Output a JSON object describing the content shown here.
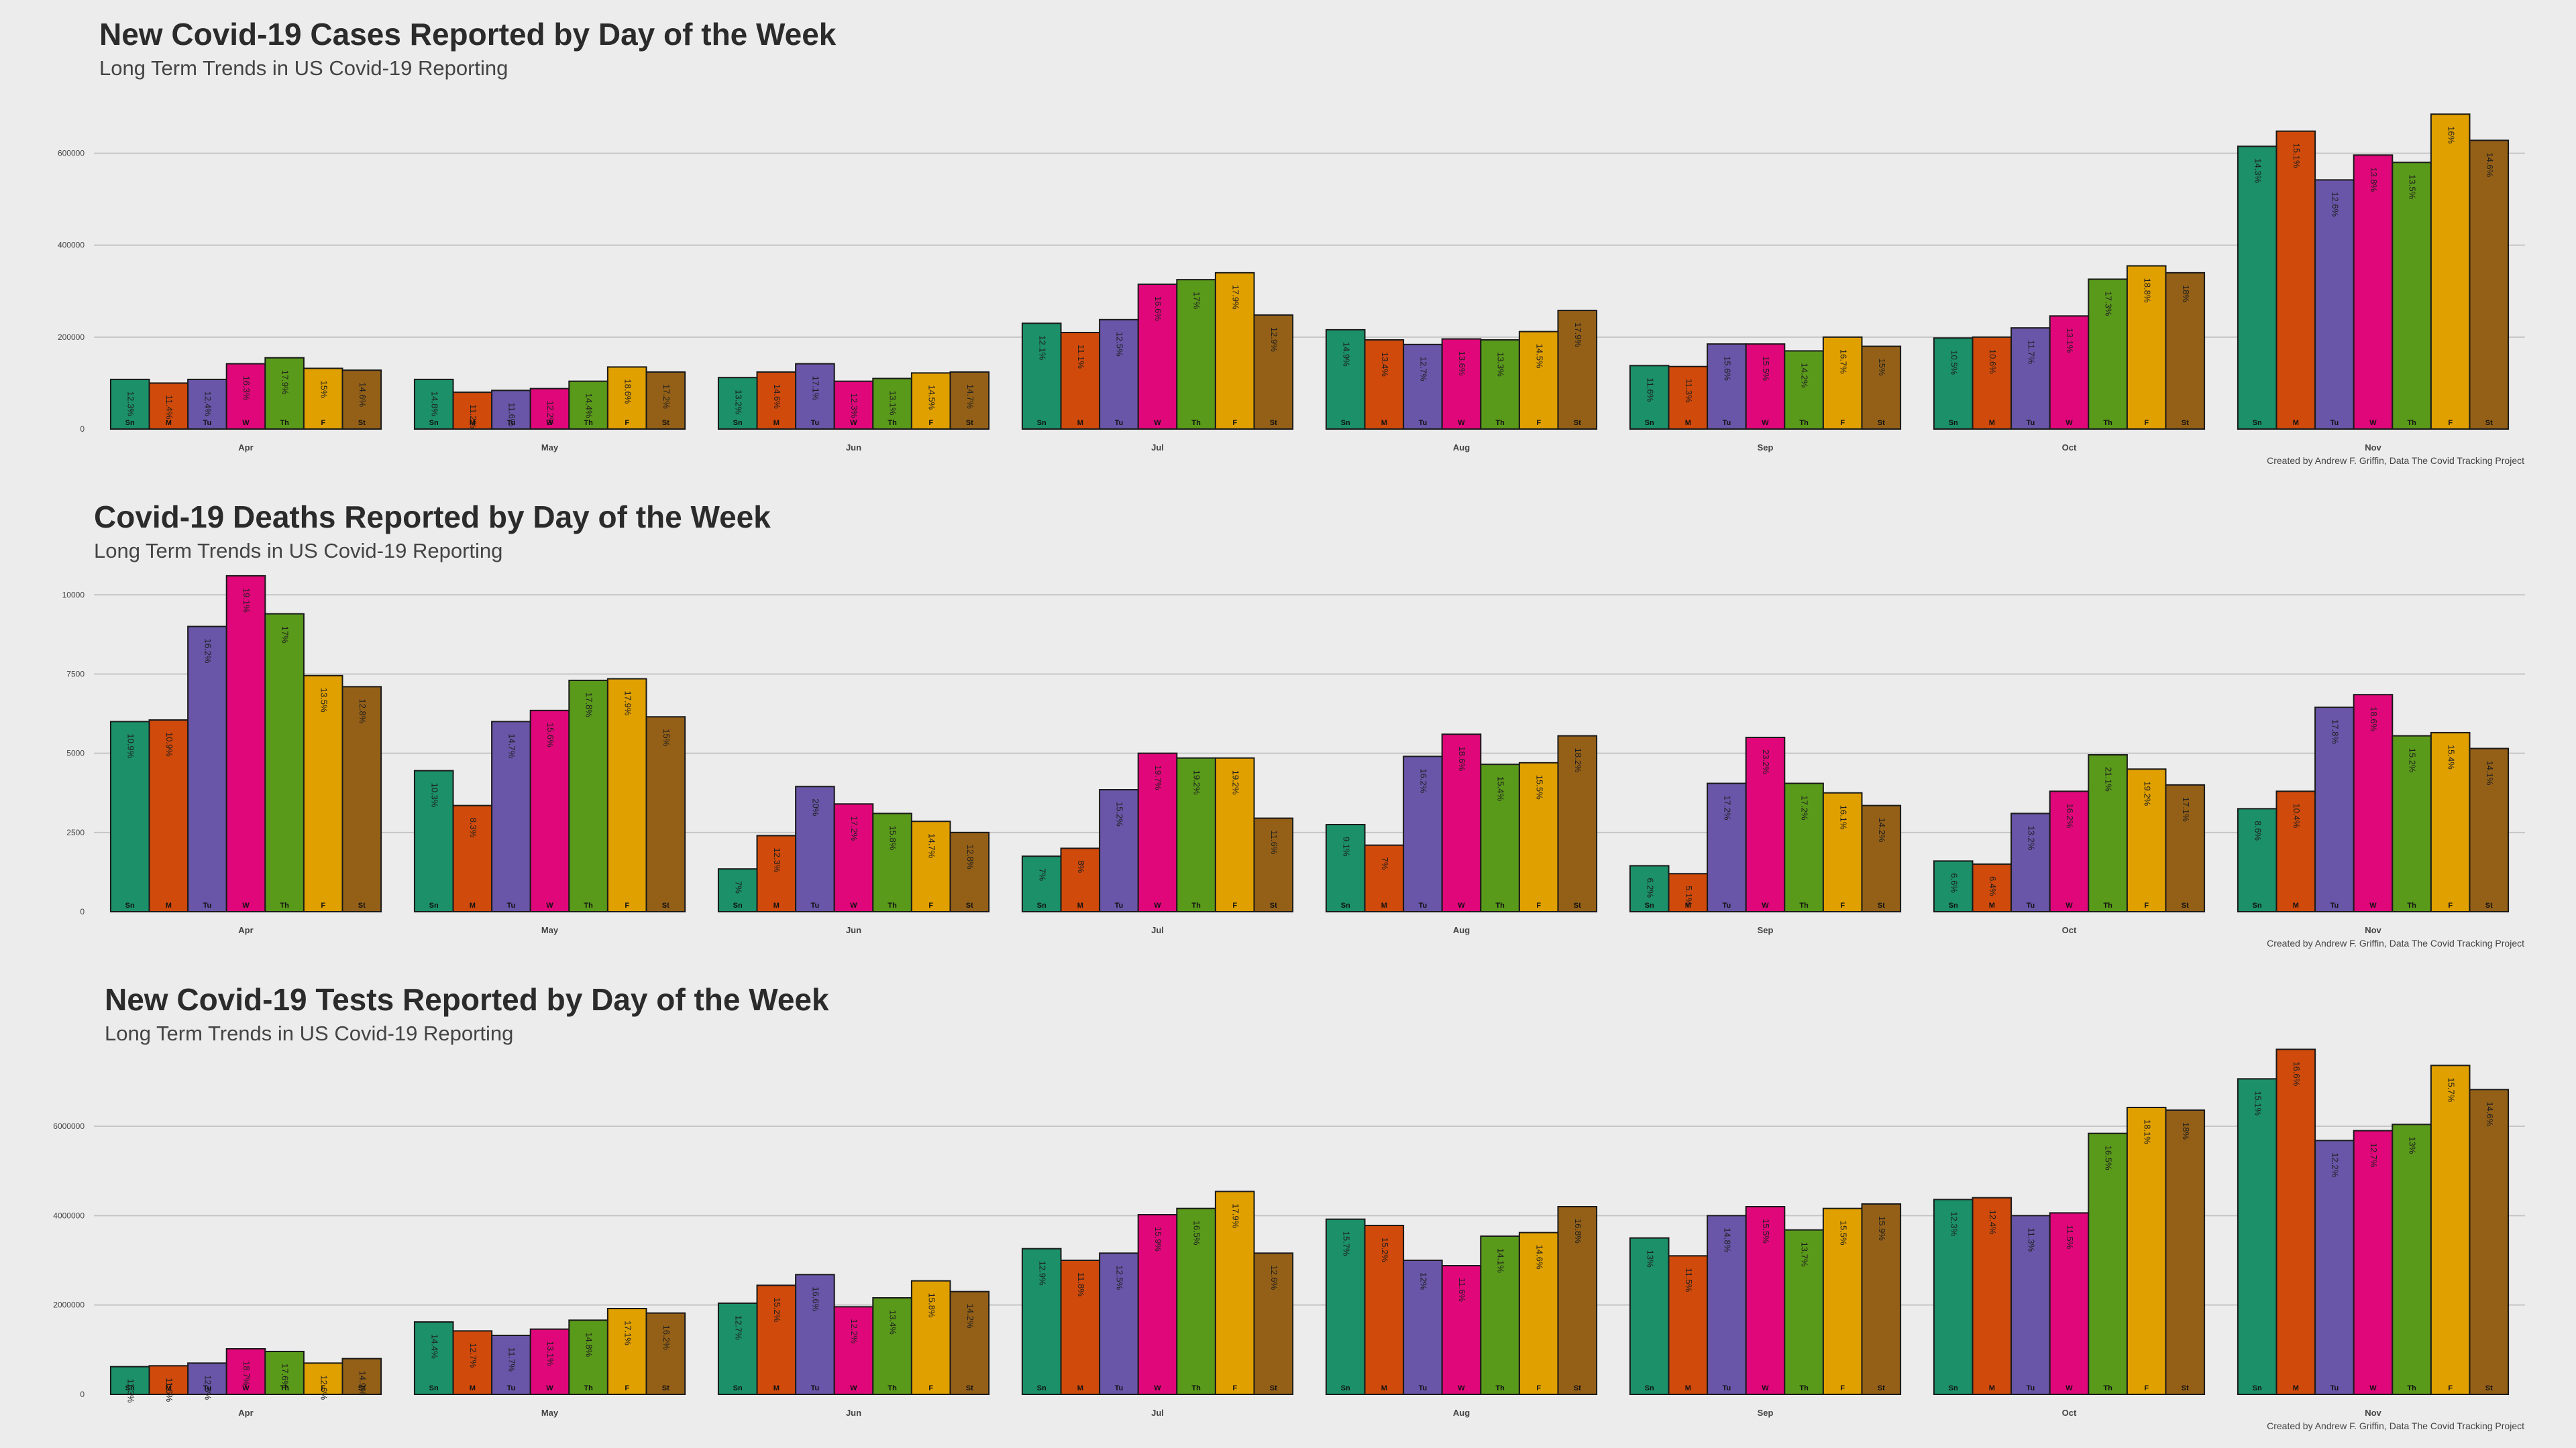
{
  "colors": {
    "days": [
      "#1b9069",
      "#cf4a0b",
      "#6956a8",
      "#e0077a",
      "#5a9a1b",
      "#e0a000",
      "#946018"
    ],
    "background": "#ececec",
    "grid": "#c6c6c6"
  },
  "chart_data": [
    {
      "type": "bar",
      "title": "New Covid-19 Cases Reported by Day of the Week",
      "subtitle": "Long Term Trends in US Covid-19 Reporting",
      "credit": "Created by Andrew F. Griffin, Data The Covid Tracking Project",
      "categories": [
        "Apr",
        "May",
        "Jun",
        "Jul",
        "Aug",
        "Sep",
        "Oct",
        "Nov"
      ],
      "day_labels": [
        "Sn",
        "M",
        "Tu",
        "W",
        "Th",
        "F",
        "St"
      ],
      "yticks": [
        "0",
        "200000",
        "400000",
        "600000"
      ],
      "ylim": [
        0,
        700000
      ],
      "grid": true,
      "values": [
        [
          108000,
          100000,
          108000,
          142000,
          155000,
          132000,
          128000
        ],
        [
          108000,
          80000,
          84000,
          88000,
          104000,
          135000,
          124000
        ],
        [
          112000,
          124000,
          142000,
          104000,
          110000,
          122000,
          124000
        ],
        [
          230000,
          210000,
          238000,
          315000,
          325000,
          340000,
          248000
        ],
        [
          216000,
          194000,
          184000,
          196000,
          194000,
          212000,
          258000
        ],
        [
          138000,
          136000,
          185000,
          185000,
          170000,
          200000,
          180000
        ],
        [
          198000,
          200000,
          220000,
          246000,
          326000,
          355000,
          340000
        ],
        [
          615000,
          648000,
          542000,
          596000,
          580000,
          685000,
          628000
        ]
      ],
      "pct_labels": [
        [
          "12.3%",
          "11.4%",
          "12.4%",
          "16.3%",
          "17.9%",
          "15%",
          "14.6%"
        ],
        [
          "14.8%",
          "11.2%",
          "11.6%",
          "12.2%",
          "14.4%",
          "18.6%",
          "17.2%"
        ],
        [
          "13.2%",
          "14.6%",
          "17.1%",
          "12.3%",
          "13.1%",
          "14.5%",
          "14.7%"
        ],
        [
          "12.1%",
          "11.1%",
          "12.5%",
          "16.6%",
          "17%",
          "17.9%",
          "12.9%"
        ],
        [
          "14.9%",
          "13.4%",
          "12.7%",
          "13.6%",
          "13.3%",
          "14.5%",
          "17.9%"
        ],
        [
          "11.6%",
          "11.3%",
          "15.6%",
          "15.5%",
          "14.2%",
          "16.7%",
          "15%"
        ],
        [
          "10.5%",
          "10.6%",
          "11.7%",
          "13.1%",
          "17.3%",
          "18.8%",
          "18%"
        ],
        [
          "14.3%",
          "15.1%",
          "12.6%",
          "13.8%",
          "13.5%",
          "16%",
          "14.6%"
        ]
      ]
    },
    {
      "type": "bar",
      "title": "Covid-19 Deaths Reported by Day of the Week",
      "subtitle": "Long Term Trends in US Covid-19 Reporting",
      "credit": "Created by Andrew F. Griffin, Data The Covid Tracking Project",
      "categories": [
        "Apr",
        "May",
        "Jun",
        "Jul",
        "Aug",
        "Sep",
        "Oct",
        "Nov"
      ],
      "day_labels": [
        "Sn",
        "M",
        "Tu",
        "W",
        "Th",
        "F",
        "St"
      ],
      "yticks": [
        "0",
        "2500",
        "5000",
        "7500",
        "10000"
      ],
      "ylim": [
        0,
        11000
      ],
      "grid": true,
      "values": [
        [
          6000,
          6050,
          9000,
          10600,
          9400,
          7450,
          7100
        ],
        [
          4450,
          3350,
          6000,
          6350,
          7300,
          7350,
          6150
        ],
        [
          1350,
          2400,
          3950,
          3400,
          3100,
          2850,
          2500
        ],
        [
          1750,
          2000,
          3850,
          5000,
          4850,
          4850,
          2950
        ],
        [
          2750,
          2100,
          4900,
          5600,
          4650,
          4700,
          5550
        ],
        [
          1450,
          1200,
          4050,
          5500,
          4050,
          3750,
          3350
        ],
        [
          1600,
          1500,
          3100,
          3800,
          4950,
          4500,
          4000
        ],
        [
          3250,
          3800,
          6450,
          6850,
          5550,
          5650,
          5150
        ]
      ],
      "pct_labels": [
        [
          "10.9%",
          "10.9%",
          "16.2%",
          "19.1%",
          "17%",
          "13.5%",
          "12.8%"
        ],
        [
          "10.3%",
          "8.3%",
          "14.7%",
          "15.6%",
          "17.8%",
          "17.9%",
          "15%"
        ],
        [
          "7%",
          "12.3%",
          "20%",
          "17.2%",
          "15.8%",
          "14.7%",
          "12.8%"
        ],
        [
          "7%",
          "8%",
          "15.2%",
          "19.7%",
          "19.2%",
          "19.2%",
          "11.6%"
        ],
        [
          "9.1%",
          "7%",
          "16.2%",
          "18.6%",
          "15.4%",
          "15.5%",
          "18.2%"
        ],
        [
          "6.2%",
          "5.1%",
          "17.2%",
          "23.2%",
          "17.2%",
          "16.1%",
          "14.2%"
        ],
        [
          "6.6%",
          "6.4%",
          "13.2%",
          "16.2%",
          "21.1%",
          "19.2%",
          "17.1%"
        ],
        [
          "8.6%",
          "10.4%",
          "17.8%",
          "18.6%",
          "15.2%",
          "15.4%",
          "14.1%"
        ]
      ]
    },
    {
      "type": "bar",
      "title": "New Covid-19 Tests Reported by Day of the Week",
      "subtitle": "Long Term Trends in US Covid-19 Reporting",
      "credit": "Created by Andrew F. Griffin, Data The Covid Tracking Project",
      "categories": [
        "Apr",
        "May",
        "Jun",
        "Jul",
        "Aug",
        "Sep",
        "Oct",
        "Nov"
      ],
      "day_labels": [
        "Sn",
        "M",
        "Tu",
        "W",
        "Th",
        "F",
        "St"
      ],
      "yticks": [
        "0",
        "2000000",
        "4000000",
        "6000000"
      ],
      "ylim": [
        0,
        7800000
      ],
      "grid": true,
      "values": [
        [
          620000,
          640000,
          700000,
          1020000,
          960000,
          700000,
          800000
        ],
        [
          1620000,
          1420000,
          1320000,
          1460000,
          1660000,
          1920000,
          1820000
        ],
        [
          2040000,
          2440000,
          2680000,
          1960000,
          2160000,
          2540000,
          2300000
        ],
        [
          3260000,
          3000000,
          3160000,
          4020000,
          4160000,
          4540000,
          3160000
        ],
        [
          3920000,
          3780000,
          3000000,
          2880000,
          3540000,
          3620000,
          4200000
        ],
        [
          3500000,
          3100000,
          4000000,
          4200000,
          3680000,
          4160000,
          4260000
        ],
        [
          4360000,
          4400000,
          4000000,
          4060000,
          5840000,
          6420000,
          6360000
        ],
        [
          7060000,
          7720000,
          5680000,
          5900000,
          6040000,
          7360000,
          6820000
        ]
      ],
      "pct_labels": [
        [
          "11.3%",
          "11.6%",
          "12.8%",
          "18.7%",
          "17.6%",
          "12.6%",
          "14.9%"
        ],
        [
          "14.4%",
          "12.7%",
          "11.7%",
          "13.1%",
          "14.8%",
          "17.1%",
          "16.2%"
        ],
        [
          "12.7%",
          "15.2%",
          "16.6%",
          "12.2%",
          "13.4%",
          "15.8%",
          "14.2%"
        ],
        [
          "12.9%",
          "11.8%",
          "12.5%",
          "15.9%",
          "16.5%",
          "17.9%",
          "12.6%"
        ],
        [
          "15.7%",
          "15.2%",
          "12%",
          "11.6%",
          "14.1%",
          "14.6%",
          "16.8%"
        ],
        [
          "13%",
          "11.5%",
          "14.8%",
          "15.5%",
          "13.7%",
          "15.5%",
          "15.9%"
        ],
        [
          "12.3%",
          "12.4%",
          "11.3%",
          "11.5%",
          "16.5%",
          "18.1%",
          "18%"
        ],
        [
          "15.1%",
          "16.6%",
          "12.2%",
          "12.7%",
          "13%",
          "15.7%",
          "14.6%"
        ]
      ]
    }
  ]
}
